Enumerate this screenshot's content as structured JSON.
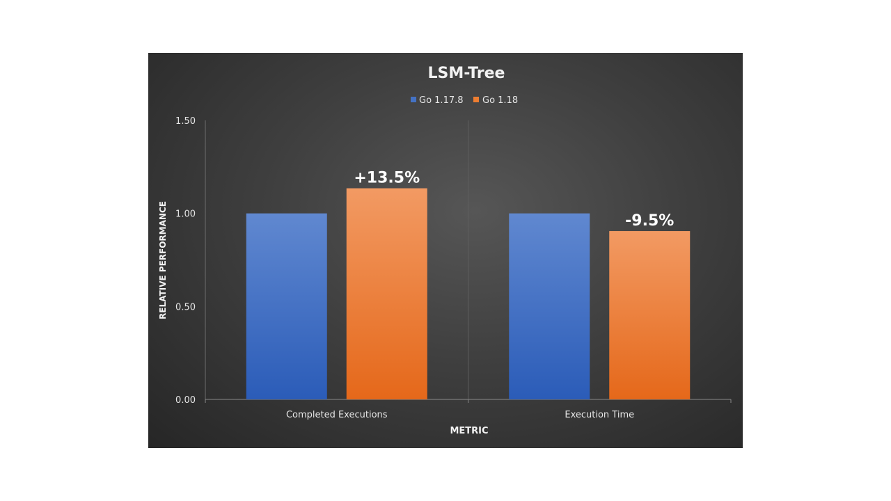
{
  "chart_data": {
    "type": "bar",
    "title": "LSM-Tree",
    "xlabel": "METRIC",
    "ylabel": "RELATIVE PERFORMANCE",
    "categories": [
      "Completed Executions",
      "Execution Time"
    ],
    "series": [
      {
        "name": "Go 1.17.8",
        "values": [
          1.0,
          1.0
        ],
        "color": "#4472c4",
        "data_labels": [
          "",
          ""
        ]
      },
      {
        "name": "Go 1.18",
        "values": [
          1.135,
          0.905
        ],
        "color": "#ed7d31",
        "data_labels": [
          "+13.5%",
          "-9.5%"
        ]
      }
    ],
    "ylim": [
      0,
      1.5
    ],
    "yticks": [
      "0.00",
      "0.50",
      "1.00",
      "1.50"
    ],
    "legend_position": "top",
    "grid": false,
    "background": "dark gradient"
  }
}
